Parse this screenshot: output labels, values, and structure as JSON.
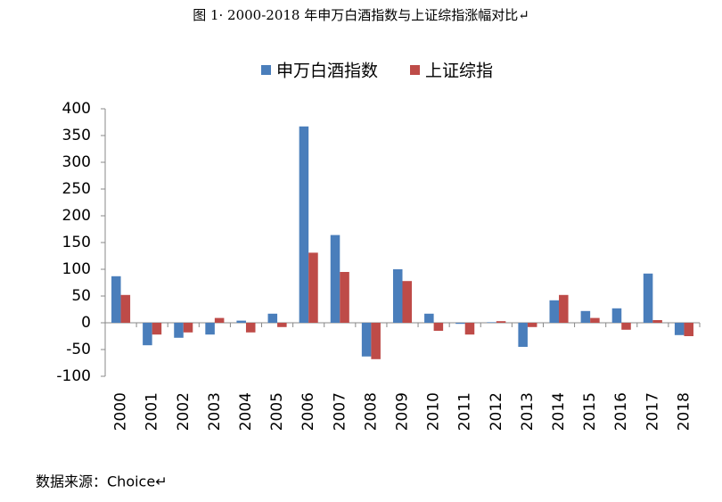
{
  "chart_data": {
    "type": "bar",
    "title": "图 1· 2000-2018 年申万白酒指数与上证综指涨幅对比↵",
    "source": "数据来源：Choice↵",
    "categories": [
      "2000",
      "2001",
      "2002",
      "2003",
      "2004",
      "2005",
      "2006",
      "2007",
      "2008",
      "2009",
      "2010",
      "2011",
      "2012",
      "2013",
      "2014",
      "2015",
      "2016",
      "2017",
      "2018"
    ],
    "series": [
      {
        "name": "申万白酒指数",
        "color": "#4a7ebb",
        "values": [
          87,
          -42,
          -28,
          -22,
          4,
          17,
          367,
          164,
          -63,
          100,
          17,
          -2,
          1,
          -45,
          42,
          22,
          27,
          92,
          -23
        ]
      },
      {
        "name": "上证综指",
        "color": "#be4b48",
        "values": [
          52,
          -22,
          -18,
          9,
          -18,
          -8,
          131,
          95,
          -68,
          78,
          -15,
          -22,
          3,
          -8,
          52,
          9,
          -13,
          5,
          -25
        ]
      }
    ],
    "ylim": [
      -100,
      400
    ],
    "yticks": [
      -100,
      -50,
      0,
      50,
      100,
      150,
      200,
      250,
      300,
      350,
      400
    ],
    "grid": false
  }
}
